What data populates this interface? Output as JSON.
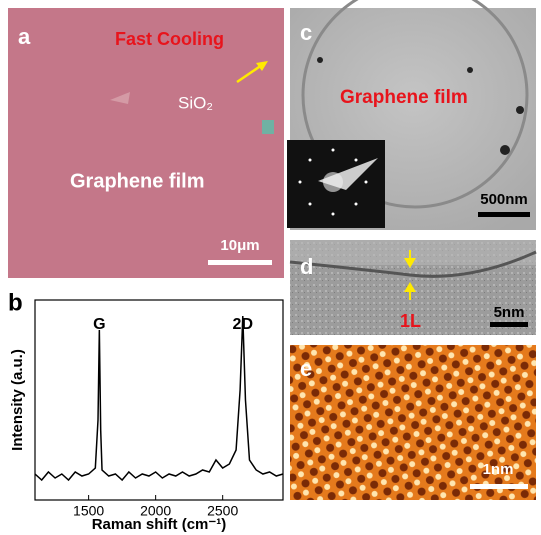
{
  "panels": {
    "a": {
      "letter": "a",
      "title": "Fast Cooling",
      "arrow_label": "SiO₂",
      "film_label": "Graphene film",
      "scale_bar": "10μm"
    },
    "c": {
      "letter": "c",
      "film_label": "Graphene film",
      "scale_bar": "500nm"
    },
    "d": {
      "letter": "d",
      "layer_label": "1L",
      "scale_bar": "5nm"
    },
    "e": {
      "letter": "e",
      "scale_bar": "1nm"
    }
  },
  "chart_data": {
    "type": "line",
    "letter": "b",
    "x_label": "Raman shift (cm⁻¹)",
    "y_label": "Intensity (a.u.)",
    "annotations": [
      {
        "text": "G",
        "x": 1580
      },
      {
        "text": "2D",
        "x": 2650
      }
    ],
    "x": [
      1100,
      1150,
      1200,
      1250,
      1300,
      1350,
      1400,
      1450,
      1500,
      1550,
      1570,
      1580,
      1590,
      1600,
      1650,
      1700,
      1750,
      1800,
      1850,
      1900,
      1950,
      2000,
      2050,
      2100,
      2150,
      2200,
      2250,
      2300,
      2350,
      2400,
      2450,
      2500,
      2550,
      2600,
      2630,
      2650,
      2670,
      2700,
      2750,
      2800,
      2850,
      2900,
      2950
    ],
    "series": [
      {
        "color": "#000000",
        "values": [
          0.13,
          0.1,
          0.14,
          0.11,
          0.13,
          0.1,
          0.14,
          0.12,
          0.13,
          0.16,
          0.4,
          0.85,
          0.35,
          0.15,
          0.12,
          0.13,
          0.1,
          0.14,
          0.11,
          0.13,
          0.12,
          0.14,
          0.11,
          0.13,
          0.12,
          0.14,
          0.12,
          0.13,
          0.15,
          0.14,
          0.2,
          0.16,
          0.18,
          0.25,
          0.55,
          0.92,
          0.5,
          0.2,
          0.15,
          0.13,
          0.14,
          0.12,
          0.13
        ]
      }
    ],
    "xlim": [
      1100,
      2950
    ],
    "ylim": [
      0,
      1
    ],
    "xticks": [
      1500,
      2000,
      2500
    ]
  }
}
